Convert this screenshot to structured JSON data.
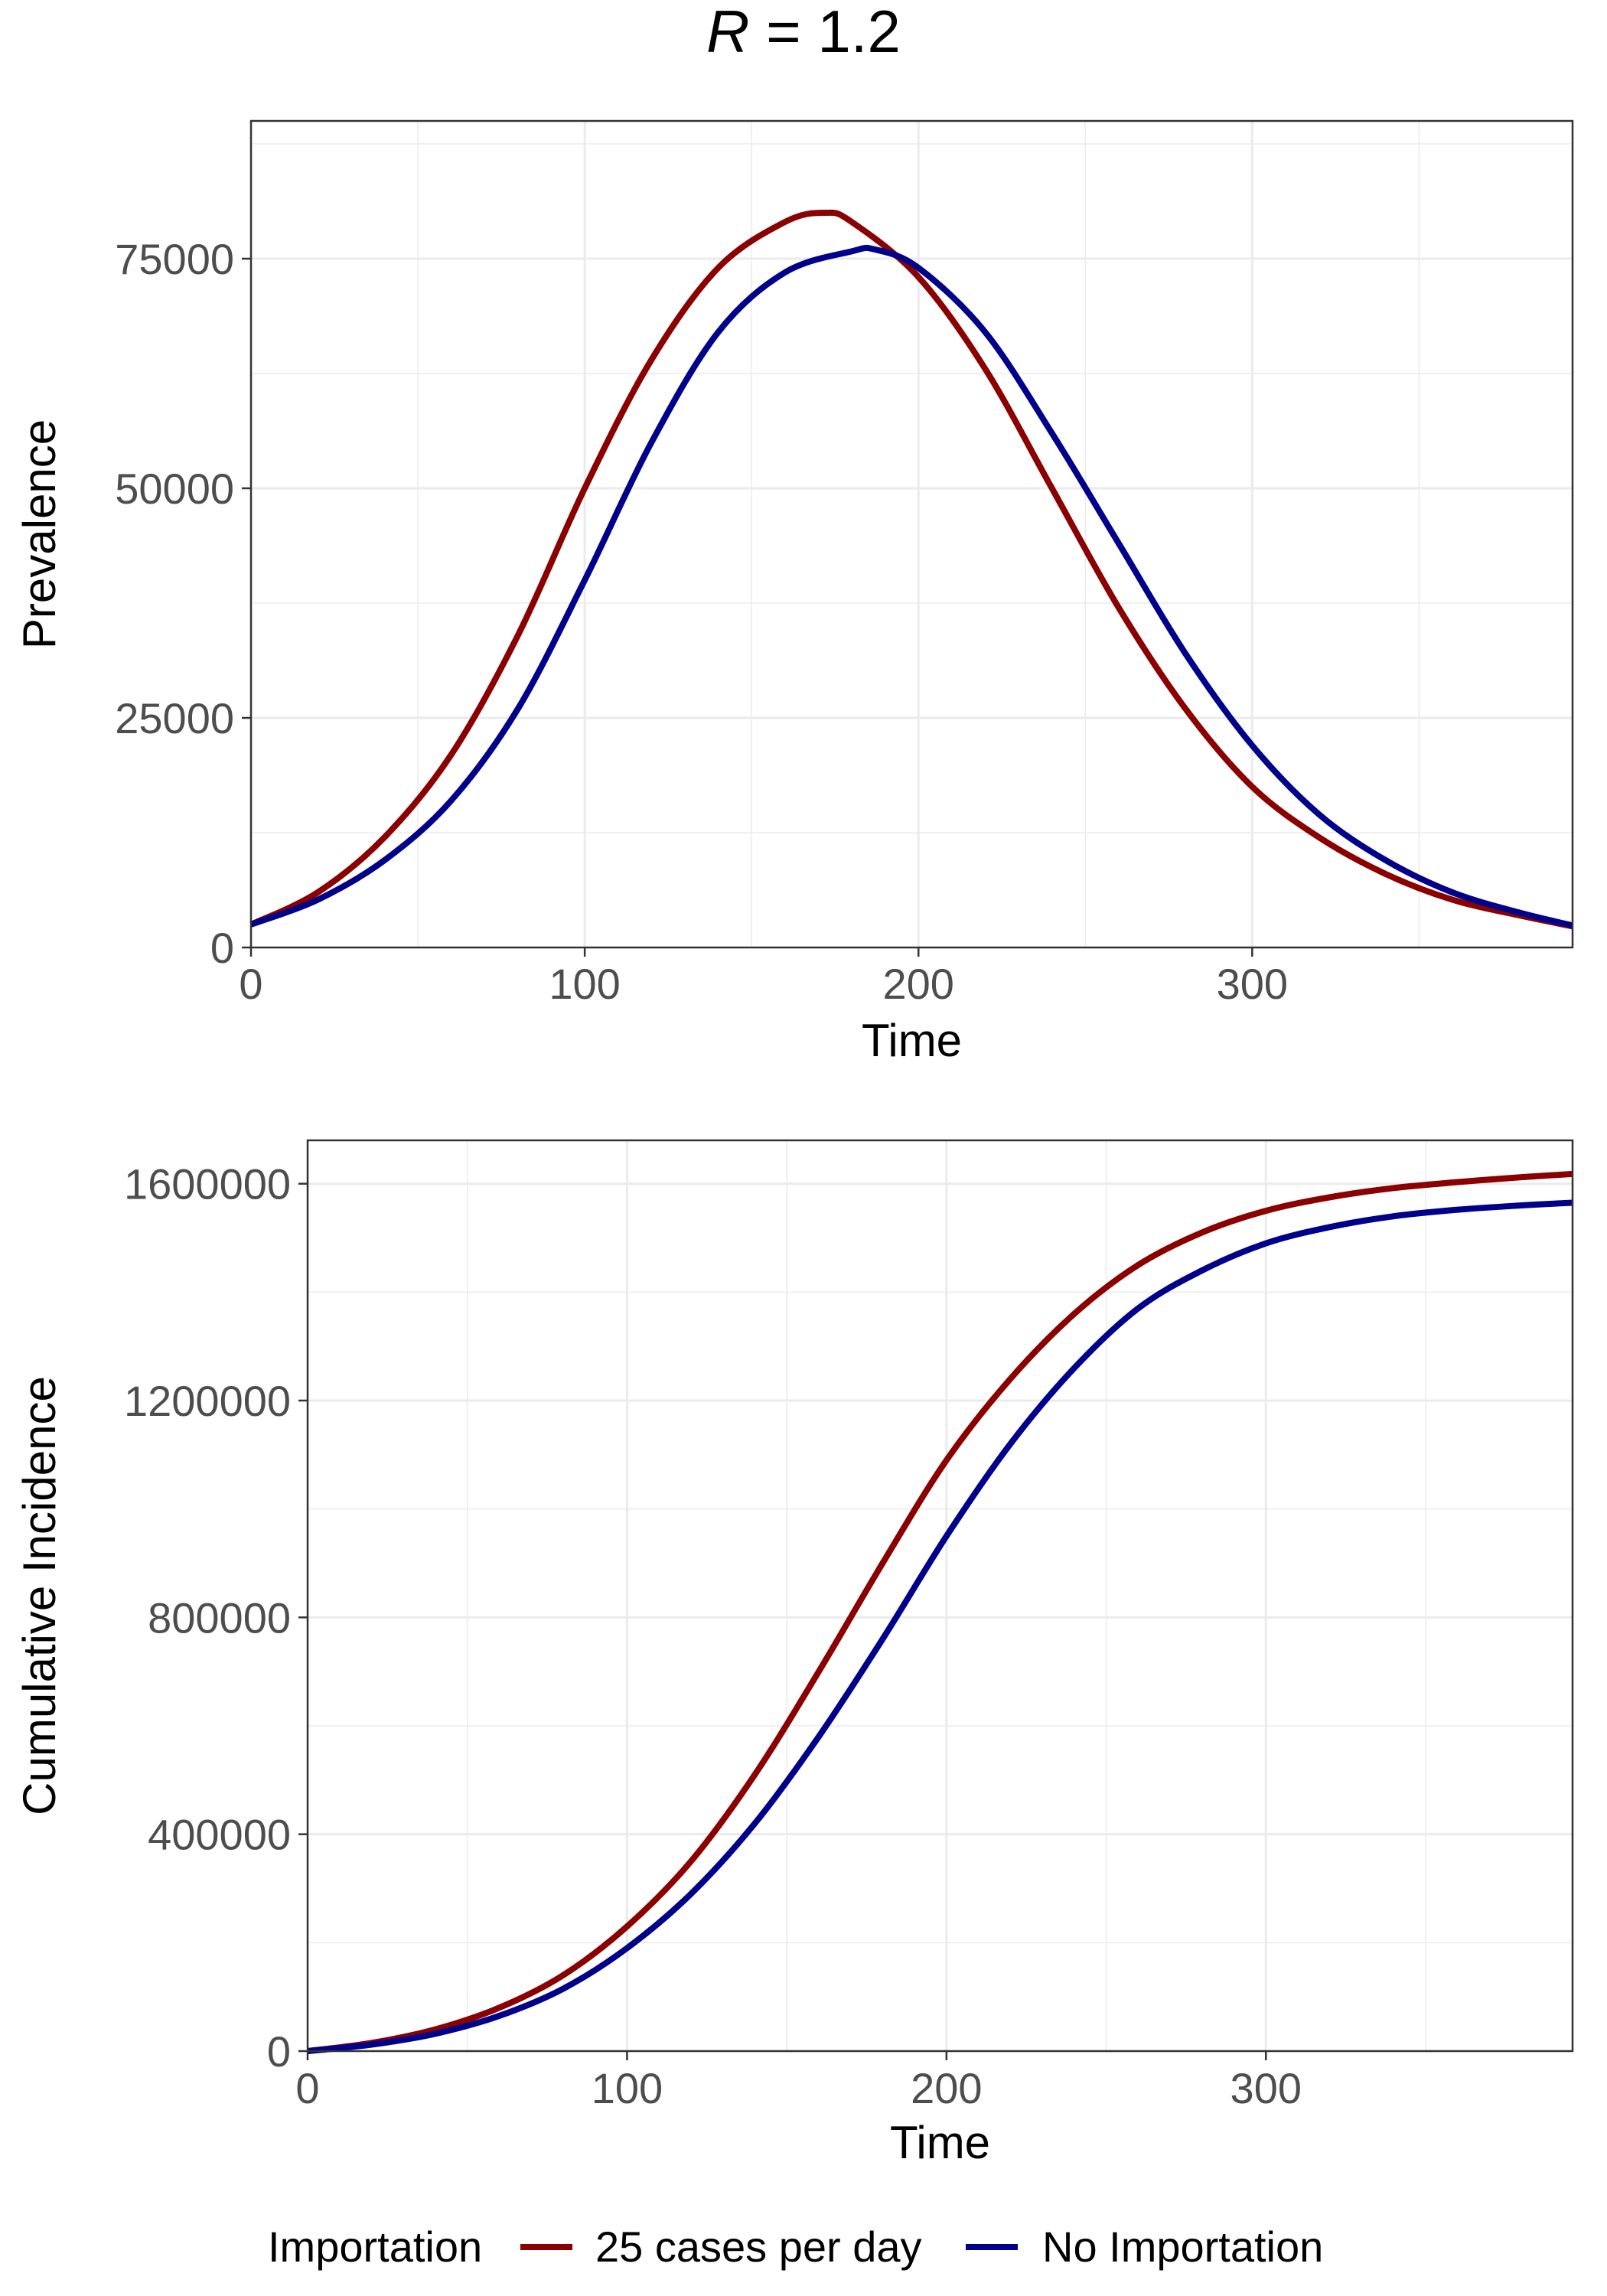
{
  "figure": {
    "title_symbol": "R",
    "title_rest": " = 1.2"
  },
  "colors": {
    "series_importation": "#8b0000",
    "series_no_importation": "#00008b",
    "grid": "#ebebeb",
    "border": "#333333",
    "tick_text": "#4d4d4d"
  },
  "legend": {
    "title": "Importation",
    "placement": "bottom",
    "items": [
      {
        "label": "25 cases per day",
        "color": "#8b0000"
      },
      {
        "label": "No Importation",
        "color": "#00008b"
      }
    ]
  },
  "chart_data": [
    {
      "type": "line",
      "xlabel": "Time",
      "ylabel": "Prevalence",
      "xlim": [
        0,
        396
      ],
      "ylim": [
        0,
        90000
      ],
      "xticks": [
        0,
        100,
        200,
        300
      ],
      "xtick_labels": [
        "0",
        "100",
        "200",
        "300"
      ],
      "yticks": [
        0,
        25000,
        50000,
        75000
      ],
      "ytick_labels": [
        "0",
        "25000",
        "50000",
        "75000"
      ],
      "grid": true,
      "series": [
        {
          "name": "25 cases per day",
          "color": "#8b0000",
          "x": [
            0,
            20,
            40,
            60,
            80,
            100,
            120,
            140,
            160,
            172,
            180,
            200,
            220,
            240,
            260,
            280,
            300,
            320,
            340,
            360,
            380,
            396
          ],
          "y": [
            2500,
            6000,
            12000,
            21000,
            34000,
            50000,
            64000,
            74000,
            79000,
            80000,
            79000,
            73000,
            63000,
            50000,
            37000,
            26000,
            17500,
            12000,
            8000,
            5200,
            3500,
            2300
          ]
        },
        {
          "name": "No Importation",
          "color": "#00008b",
          "x": [
            0,
            20,
            40,
            60,
            80,
            100,
            120,
            140,
            160,
            180,
            187,
            200,
            220,
            240,
            260,
            280,
            300,
            320,
            340,
            360,
            380,
            396
          ],
          "y": [
            2500,
            5200,
            9500,
            16000,
            26000,
            40000,
            55000,
            67000,
            73500,
            75800,
            76000,
            74000,
            67000,
            56000,
            44000,
            32000,
            22000,
            14500,
            9500,
            6000,
            3800,
            2400
          ]
        }
      ]
    },
    {
      "type": "line",
      "xlabel": "Time",
      "ylabel": "Cumulative Incidence",
      "xlim": [
        0,
        396
      ],
      "ylim": [
        0,
        1680000
      ],
      "xticks": [
        0,
        100,
        200,
        300
      ],
      "xtick_labels": [
        "0",
        "100",
        "200",
        "300"
      ],
      "yticks": [
        0,
        400000,
        800000,
        1200000,
        1600000
      ],
      "ytick_labels": [
        "0",
        "400000",
        "800000",
        "1200000",
        "1600000"
      ],
      "grid": true,
      "series": [
        {
          "name": "25 cases per day",
          "color": "#8b0000",
          "x": [
            0,
            20,
            40,
            60,
            80,
            100,
            120,
            140,
            160,
            180,
            200,
            220,
            240,
            260,
            280,
            300,
            320,
            340,
            360,
            380,
            396
          ],
          "y": [
            0,
            15000,
            40000,
            80000,
            140000,
            230000,
            350000,
            510000,
            700000,
            900000,
            1090000,
            1240000,
            1360000,
            1450000,
            1510000,
            1550000,
            1575000,
            1592000,
            1603000,
            1612000,
            1618000
          ]
        },
        {
          "name": "No Importation",
          "color": "#00008b",
          "x": [
            0,
            20,
            40,
            60,
            80,
            100,
            120,
            140,
            160,
            180,
            200,
            220,
            240,
            260,
            280,
            300,
            320,
            340,
            360,
            380,
            396
          ],
          "y": [
            0,
            12000,
            32000,
            65000,
            115000,
            190000,
            290000,
            420000,
            580000,
            760000,
            950000,
            1120000,
            1260000,
            1370000,
            1440000,
            1490000,
            1520000,
            1540000,
            1552000,
            1560000,
            1565000
          ]
        }
      ]
    }
  ]
}
